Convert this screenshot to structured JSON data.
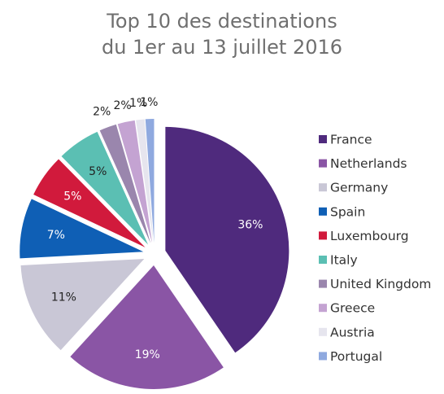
{
  "chart_data": {
    "type": "pie",
    "title_lines": [
      "Top 10 des destinations",
      "du 1er au 13 juillet 2016"
    ],
    "exploded": true,
    "legend_position": "right",
    "slices": [
      {
        "label": "France",
        "value": 36,
        "value_label": "36%",
        "color": "#4f2a7d",
        "label_color": "#ffffff"
      },
      {
        "label": "Netherlands",
        "value": 19,
        "value_label": "19%",
        "color": "#8a55a5",
        "label_color": "#ffffff"
      },
      {
        "label": "Germany",
        "value": 11,
        "value_label": "11%",
        "color": "#c9c7d6",
        "label_color": "#222222"
      },
      {
        "label": "Spain",
        "value": 7,
        "value_label": "7%",
        "color": "#0f5fb5",
        "label_color": "#ffffff"
      },
      {
        "label": "Luxembourg",
        "value": 5,
        "value_label": "5%",
        "color": "#d11a3c",
        "label_color": "#ffffff"
      },
      {
        "label": "Italy",
        "value": 5,
        "value_label": "5%",
        "color": "#5bbfb3",
        "label_color": "#222222"
      },
      {
        "label": "United Kingdom",
        "value": 2,
        "value_label": "2%",
        "color": "#9a86ad",
        "label_color": "#222222"
      },
      {
        "label": "Greece",
        "value": 2,
        "value_label": "2%",
        "color": "#c4a3d2",
        "label_color": "#222222"
      },
      {
        "label": "Austria",
        "value": 1,
        "value_label": "1%",
        "color": "#e6e5ee",
        "label_color": "#222222"
      },
      {
        "label": "Portugal",
        "value": 1,
        "value_label": "1%",
        "color": "#8fa9df",
        "label_color": "#222222"
      }
    ]
  }
}
